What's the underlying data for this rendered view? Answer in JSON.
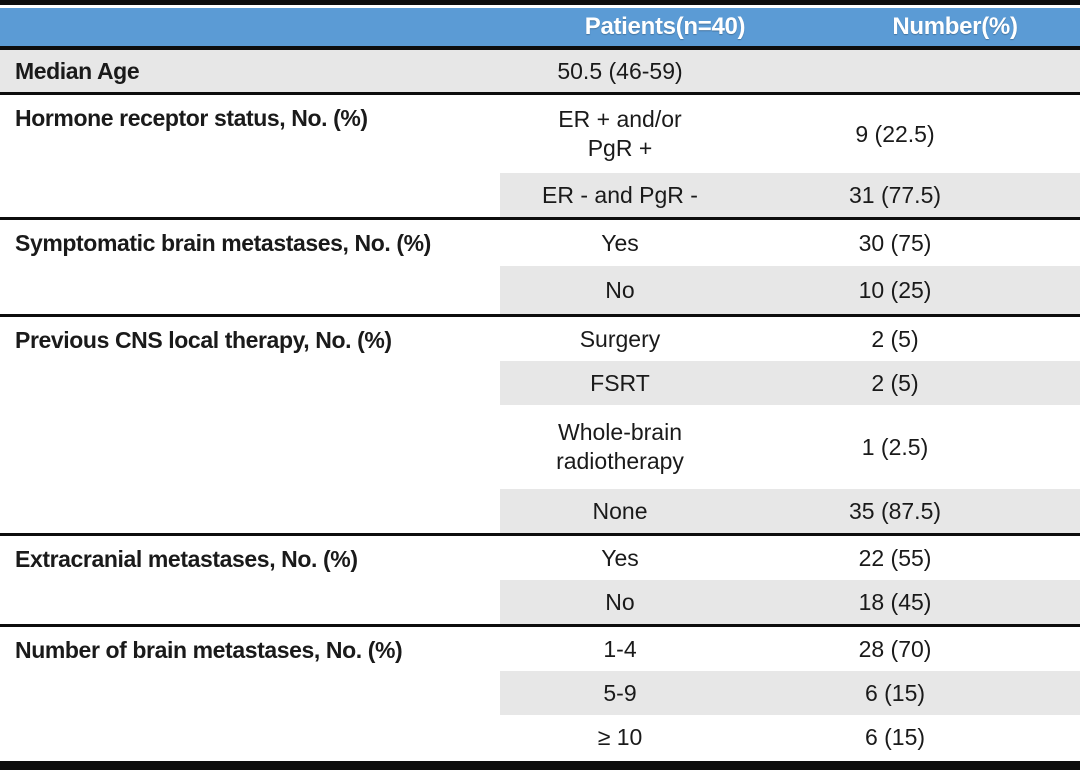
{
  "table": {
    "title": "Patient characteristics table",
    "colors": {
      "header_bg": "#5B9BD5",
      "header_text": "#FFFFFF",
      "row_shade": "#E7E7E7",
      "rule": "#0D0D0D"
    },
    "header": {
      "patients_label": "Patients(n=40)",
      "number_label": "Number(%)"
    },
    "groups": [
      {
        "label": "Median Age",
        "rows": [
          {
            "patients": "50.5 (46-59)",
            "number": ""
          }
        ]
      },
      {
        "label": "Hormone receptor status, No. (%)",
        "rows": [
          {
            "patients": "ER + and/or\nPgR +",
            "number": "9 (22.5)"
          },
          {
            "patients": "ER - and PgR -",
            "number": "31 (77.5)"
          }
        ]
      },
      {
        "label": "Symptomatic brain metastases, No. (%)",
        "rows": [
          {
            "patients": "Yes",
            "number": "30 (75)"
          },
          {
            "patients": "No",
            "number": "10 (25)"
          }
        ]
      },
      {
        "label": "Previous CNS local therapy, No. (%)",
        "rows": [
          {
            "patients": "Surgery",
            "number": "2 (5)"
          },
          {
            "patients": "FSRT",
            "number": "2 (5)"
          },
          {
            "patients": "Whole-brain\nradiotherapy",
            "number": "1 (2.5)"
          },
          {
            "patients": "None",
            "number": "35 (87.5)"
          }
        ]
      },
      {
        "label": "Extracranial metastases, No. (%)",
        "rows": [
          {
            "patients": "Yes",
            "number": "22 (55)"
          },
          {
            "patients": "No",
            "number": "18 (45)"
          }
        ]
      },
      {
        "label": "Number of brain metastases, No. (%)",
        "rows": [
          {
            "patients": "1-4",
            "number": "28 (70)"
          },
          {
            "patients": "5-9",
            "number": "6 (15)"
          },
          {
            "patients": "≥ 10",
            "number": "6 (15)"
          }
        ]
      }
    ]
  }
}
